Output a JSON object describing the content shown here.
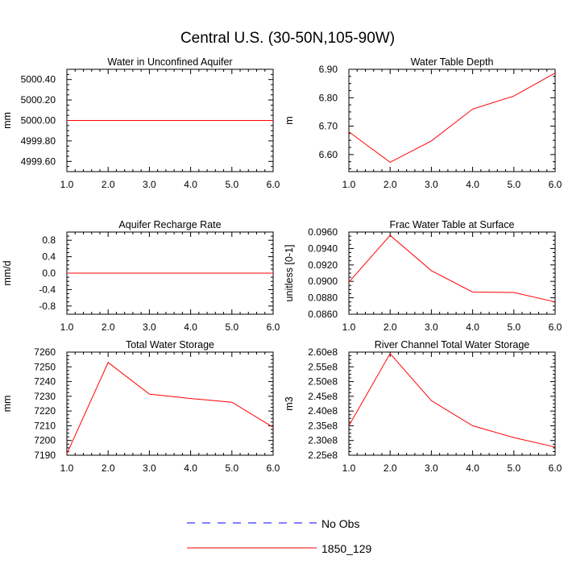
{
  "title": "Central U.S. (30-50N,105-90W)",
  "legend": [
    {
      "label": "No Obs",
      "color": "#0000ff",
      "style": "dashed"
    },
    {
      "label": "1850_129",
      "color": "#ff0000",
      "style": "solid"
    }
  ],
  "chart_data": [
    {
      "type": "line",
      "title": "Water in Unconfined Aquifer",
      "xlabel": "",
      "ylabel": "mm",
      "xlim": [
        1,
        6
      ],
      "ylim": [
        4999.5,
        5000.5
      ],
      "xticks": [
        1,
        2,
        3,
        4,
        5,
        6
      ],
      "xtick_labels": [
        "1.0",
        "2.0",
        "3.0",
        "4.0",
        "5.0",
        "6.0"
      ],
      "yticks": [
        4999.6,
        4999.8,
        5000.0,
        5000.2,
        5000.4
      ],
      "ytick_labels": [
        "4999.60",
        "4999.80",
        "5000.00",
        "5000.20",
        "5000.40"
      ],
      "series": [
        {
          "name": "1850_129",
          "color": "#ff0000",
          "x": [
            1,
            2,
            3,
            4,
            5,
            6
          ],
          "y": [
            5000.0,
            5000.0,
            5000.0,
            5000.0,
            5000.0,
            5000.0
          ]
        }
      ]
    },
    {
      "type": "line",
      "title": "Water Table Depth",
      "xlabel": "",
      "ylabel": "m",
      "xlim": [
        1,
        6
      ],
      "ylim": [
        6.54,
        6.9
      ],
      "xticks": [
        1,
        2,
        3,
        4,
        5,
        6
      ],
      "xtick_labels": [
        "1.0",
        "2.0",
        "3.0",
        "4.0",
        "5.0",
        "6.0"
      ],
      "yticks": [
        6.6,
        6.7,
        6.8,
        6.9
      ],
      "ytick_labels": [
        "6.60",
        "6.70",
        "6.80",
        "6.90"
      ],
      "series": [
        {
          "name": "1850_129",
          "color": "#ff0000",
          "x": [
            1,
            2,
            3,
            4,
            5,
            6
          ],
          "y": [
            6.68,
            6.573,
            6.648,
            6.76,
            6.806,
            6.887
          ]
        }
      ]
    },
    {
      "type": "line",
      "title": "Aquifer Recharge Rate",
      "xlabel": "",
      "ylabel": "mm/d",
      "xlim": [
        1,
        6
      ],
      "ylim": [
        -1,
        1
      ],
      "xticks": [
        1,
        2,
        3,
        4,
        5,
        6
      ],
      "xtick_labels": [
        "1.0",
        "2.0",
        "3.0",
        "4.0",
        "5.0",
        "6.0"
      ],
      "yticks": [
        -0.8,
        -0.4,
        0,
        0.4,
        0.8
      ],
      "ytick_labels": [
        "-0.8",
        "-0.4",
        "0.0",
        "0.4",
        "0.8"
      ],
      "series": [
        {
          "name": "1850_129",
          "color": "#ff0000",
          "x": [
            1,
            2,
            3,
            4,
            5,
            6
          ],
          "y": [
            0,
            0,
            0,
            0,
            0,
            0
          ]
        }
      ]
    },
    {
      "type": "line",
      "title": "Frac Water Table at Surface",
      "xlabel": "",
      "ylabel": "unitless [0-1]",
      "xlim": [
        1,
        6
      ],
      "ylim": [
        0.086,
        0.096
      ],
      "xticks": [
        1,
        2,
        3,
        4,
        5,
        6
      ],
      "xtick_labels": [
        "1.0",
        "2.0",
        "3.0",
        "4.0",
        "5.0",
        "6.0"
      ],
      "yticks": [
        0.086,
        0.088,
        0.09,
        0.092,
        0.094,
        0.096
      ],
      "ytick_labels": [
        "0.0860",
        "0.0880",
        "0.0900",
        "0.0920",
        "0.0940",
        "0.0960"
      ],
      "series": [
        {
          "name": "1850_129",
          "color": "#ff0000",
          "x": [
            1,
            2,
            3,
            4,
            5,
            6
          ],
          "y": [
            0.0899,
            0.0956,
            0.0913,
            0.0887,
            0.08865,
            0.0875
          ]
        }
      ]
    },
    {
      "type": "line",
      "title": "Total Water Storage",
      "xlabel": "",
      "ylabel": "mm",
      "xlim": [
        1,
        6
      ],
      "ylim": [
        7190,
        7260
      ],
      "xticks": [
        1,
        2,
        3,
        4,
        5,
        6
      ],
      "xtick_labels": [
        "1.0",
        "2.0",
        "3.0",
        "4.0",
        "5.0",
        "6.0"
      ],
      "yticks": [
        7190,
        7200,
        7210,
        7220,
        7230,
        7240,
        7250,
        7260
      ],
      "ytick_labels": [
        "7190",
        "7200",
        "7210",
        "7220",
        "7230",
        "7240",
        "7250",
        "7260"
      ],
      "series": [
        {
          "name": "1850_129",
          "color": "#ff0000",
          "x": [
            1,
            2,
            3,
            4,
            5,
            6
          ],
          "y": [
            7191,
            7253,
            7231.5,
            7228.5,
            7226,
            7209
          ]
        }
      ]
    },
    {
      "type": "line",
      "title": "River Channel Total Water Storage",
      "xlabel": "",
      "ylabel": "m3",
      "xlim": [
        1,
        6
      ],
      "ylim": [
        225000000.0,
        260000000.0
      ],
      "xticks": [
        1,
        2,
        3,
        4,
        5,
        6
      ],
      "xtick_labels": [
        "1.0",
        "2.0",
        "3.0",
        "4.0",
        "5.0",
        "6.0"
      ],
      "yticks": [
        225000000.0,
        230000000.0,
        235000000.0,
        240000000.0,
        245000000.0,
        250000000.0,
        255000000.0,
        260000000.0
      ],
      "ytick_labels": [
        "2.25e8",
        "2.30e8",
        "2.35e8",
        "2.40e8",
        "2.45e8",
        "2.50e8",
        "2.55e8",
        "2.60e8"
      ],
      "series": [
        {
          "name": "1850_129",
          "color": "#ff0000",
          "x": [
            1,
            2,
            3,
            4,
            5,
            6
          ],
          "y": [
            235000000.0,
            259500000.0,
            243500000.0,
            235000000.0,
            231000000.0,
            227800000.0
          ]
        }
      ]
    }
  ]
}
